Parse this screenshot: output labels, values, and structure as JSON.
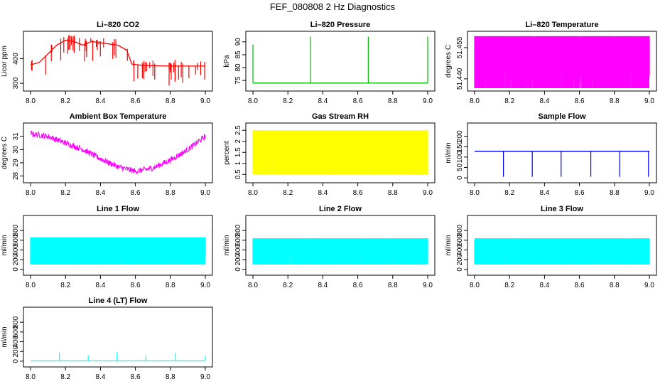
{
  "title": "FEF_080808  2 Hz Diagnostics",
  "chart_data": [
    {
      "type": "line",
      "title": "Li–820 CO2",
      "ylabel": "Licor ppm",
      "color": "#ff0000",
      "xlim": [
        8.0,
        9.0
      ],
      "xticks": [
        "8.0",
        "8.2",
        "8.4",
        "8.6",
        "8.8",
        "9.0"
      ],
      "ylim": [
        280,
        500
      ],
      "yticks": [
        300,
        400
      ],
      "series": [
        {
          "x": [
            8.0,
            8.05,
            8.1,
            8.15,
            8.2,
            8.25,
            8.3,
            8.35,
            8.4,
            8.45,
            8.5,
            8.55,
            8.58,
            8.65,
            8.8,
            9.0
          ],
          "values": [
            375,
            385,
            420,
            455,
            475,
            470,
            455,
            470,
            465,
            460,
            455,
            435,
            378,
            372,
            370,
            370
          ]
        }
      ]
    },
    {
      "type": "line",
      "title": "Li–820 Pressure",
      "ylabel": "kPa",
      "color": "#00c000",
      "xlim": [
        8.0,
        9.0
      ],
      "xticks": [
        "8.0",
        "8.2",
        "8.4",
        "8.6",
        "8.8",
        "9.0"
      ],
      "ylim": [
        72,
        93
      ],
      "yticks": [
        75,
        80,
        85,
        90
      ],
      "series": [
        {
          "x": [
            8.0,
            9.0
          ],
          "values": [
            74,
            74
          ]
        }
      ],
      "spikes": [
        {
          "x": 8.0,
          "value": 89
        },
        {
          "x": 8.33,
          "value": 92
        },
        {
          "x": 8.66,
          "value": 92
        },
        {
          "x": 9.0,
          "value": 92
        }
      ]
    },
    {
      "type": "area",
      "title": "Li–820 Temperature",
      "ylabel": "degrees C",
      "color": "#ff00ff",
      "xlim": [
        8.0,
        9.0
      ],
      "xticks": [
        "8.0",
        "8.2",
        "8.4",
        "8.6",
        "8.8",
        "9.0"
      ],
      "ylim": [
        51.4355,
        51.4615
      ],
      "yticks": [
        "51.440",
        "51.455"
      ],
      "band": {
        "low": 51.4355,
        "high": 51.4605
      }
    },
    {
      "type": "line",
      "title": "Ambient Box Temperature",
      "ylabel": "degrees C",
      "color": "#ff00ff",
      "xlim": [
        8.0,
        9.0
      ],
      "xticks": [
        "8.0",
        "8.2",
        "8.4",
        "8.6",
        "8.8",
        "9.0"
      ],
      "ylim": [
        27.7,
        31.8
      ],
      "yticks": [
        28,
        29,
        30,
        31
      ],
      "series": [
        {
          "x": [
            8.0,
            8.1,
            8.2,
            8.3,
            8.4,
            8.5,
            8.6,
            8.7,
            8.8,
            8.9,
            9.0
          ],
          "values": [
            31.2,
            31.0,
            30.5,
            30.0,
            29.3,
            28.7,
            28.35,
            28.6,
            29.2,
            30.0,
            31.0
          ]
        }
      ],
      "noise": 0.45
    },
    {
      "type": "area",
      "title": "Gas Stream RH",
      "ylabel": "percent",
      "color": "#ffff00",
      "xlim": [
        8.0,
        9.0
      ],
      "xticks": [
        "8.0",
        "8.2",
        "8.4",
        "8.6",
        "8.8",
        "9.0"
      ],
      "ylim": [
        0.25,
        2.7
      ],
      "yticks": [
        0.5,
        1.0,
        1.5,
        2.0,
        2.5
      ],
      "band": {
        "low": 0.5,
        "high": 2.5
      }
    },
    {
      "type": "line",
      "title": "Sample Flow",
      "ylabel": "ml/min",
      "color": "#0000ff",
      "xlim": [
        8.0,
        9.0
      ],
      "xticks": [
        "8.0",
        "8.2",
        "8.4",
        "8.6",
        "8.8",
        "9.0"
      ],
      "ylim": [
        -10,
        250
      ],
      "yticks": [
        0,
        50,
        100,
        150,
        200
      ],
      "series": [
        {
          "x": [
            8.0,
            9.0
          ],
          "values": [
            128,
            128
          ]
        }
      ],
      "dips": [
        {
          "x": 8.165,
          "value": 5
        },
        {
          "x": 8.33,
          "value": 5
        },
        {
          "x": 8.495,
          "value": 5
        },
        {
          "x": 8.665,
          "value": 5
        },
        {
          "x": 8.83,
          "value": 5
        },
        {
          "x": 8.995,
          "value": 5
        }
      ]
    },
    {
      "type": "area",
      "title": "Line 1 Flow",
      "ylabel": "ml/min",
      "color": "#00ffff",
      "xlim": [
        8.0,
        9.0
      ],
      "xticks": [
        "8.0",
        "8.2",
        "8.4",
        "8.6",
        "8.8",
        "9.0"
      ],
      "ylim": [
        -60,
        1050
      ],
      "yticks": [
        0,
        200,
        400,
        600,
        800
      ],
      "band": {
        "low": 100,
        "high": 660
      }
    },
    {
      "type": "area",
      "title": "Line 2 Flow",
      "ylabel": "ml/min",
      "color": "#00ffff",
      "xlim": [
        8.0,
        9.0
      ],
      "xticks": [
        "8.0",
        "8.2",
        "8.4",
        "8.6",
        "8.8",
        "9.0"
      ],
      "ylim": [
        -60,
        1050
      ],
      "yticks": [
        0,
        200,
        400,
        600,
        800
      ],
      "band": {
        "low": 100,
        "high": 640
      }
    },
    {
      "type": "area",
      "title": "Line 3 Flow",
      "ylabel": "ml/min",
      "color": "#00ffff",
      "xlim": [
        8.0,
        9.0
      ],
      "xticks": [
        "8.0",
        "8.2",
        "8.4",
        "8.6",
        "8.8",
        "9.0"
      ],
      "ylim": [
        -60,
        1050
      ],
      "yticks": [
        0,
        200,
        400,
        600,
        800
      ],
      "band": {
        "low": 100,
        "high": 640
      }
    },
    {
      "type": "line",
      "title": "Line 4 (LT) Flow",
      "ylabel": "ml/min",
      "color": "#00ffff",
      "xlim": [
        8.0,
        9.0
      ],
      "xticks": [
        "8.0",
        "8.2",
        "8.4",
        "8.6",
        "8.8",
        "9.0"
      ],
      "ylim": [
        -60,
        1050
      ],
      "yticks": [
        0,
        200,
        400,
        600,
        800
      ],
      "series": [
        {
          "x": [
            8.0,
            9.0
          ],
          "values": [
            5,
            5
          ]
        }
      ],
      "spikes": [
        {
          "x": 8.165,
          "value": 180
        },
        {
          "x": 8.33,
          "value": 120
        },
        {
          "x": 8.495,
          "value": 190
        },
        {
          "x": 8.66,
          "value": 120
        },
        {
          "x": 8.83,
          "value": 170
        },
        {
          "x": 9.0,
          "value": 110
        }
      ]
    }
  ]
}
